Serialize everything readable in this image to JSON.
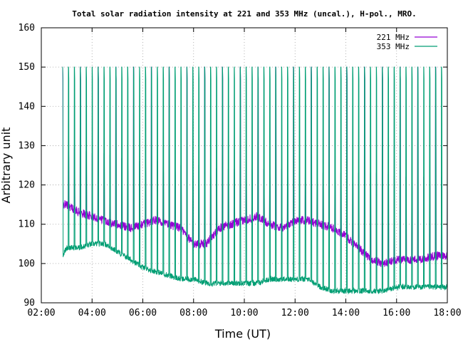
{
  "chart_data": {
    "type": "line",
    "title": "Total solar radiation intensity at 221 and 353 MHz (uncal.), H-pol., MRO.",
    "xlabel": "Time (UT)",
    "ylabel": "Arbitrary unit",
    "xlim": [
      "02:00",
      "18:00"
    ],
    "ylim": [
      90,
      160
    ],
    "x_ticks": [
      "02:00",
      "04:00",
      "06:00",
      "08:00",
      "10:00",
      "12:00",
      "14:00",
      "16:00",
      "18:00"
    ],
    "y_ticks": [
      90,
      100,
      110,
      120,
      130,
      140,
      150,
      160
    ],
    "grid": true,
    "legend_position": "top-right",
    "series": [
      {
        "name": "221 MHz",
        "color": "#9400d3",
        "x": [
          "02:50",
          "03:00",
          "03:30",
          "04:00",
          "04:30",
          "05:00",
          "05:30",
          "06:00",
          "06:30",
          "07:00",
          "07:30",
          "08:00",
          "08:30",
          "09:00",
          "09:30",
          "10:00",
          "10:30",
          "11:00",
          "11:30",
          "12:00",
          "12:30",
          "13:00",
          "13:30",
          "14:00",
          "14:30",
          "15:00",
          "15:30",
          "16:00",
          "16:30",
          "17:00",
          "17:30",
          "18:00"
        ],
        "values": [
          115,
          115,
          113,
          112,
          111,
          110,
          109,
          110,
          111,
          110,
          109,
          105,
          105,
          109,
          110,
          111,
          112,
          110,
          109,
          111,
          111,
          110,
          109,
          107,
          104,
          101,
          100,
          101,
          101,
          101,
          102,
          102
        ],
        "spike_peaks": [
          131,
          130,
          129,
          128,
          128,
          127,
          126,
          126,
          126,
          126,
          125,
          125,
          125,
          124,
          124,
          124,
          124,
          124,
          124,
          123,
          123,
          123,
          123,
          123,
          123,
          123,
          123,
          122,
          122,
          122,
          122,
          122
        ],
        "calibration_spike_level": 150
      },
      {
        "name": "353 MHz",
        "color": "#009e73",
        "x": [
          "02:50",
          "03:00",
          "03:30",
          "04:00",
          "04:30",
          "05:00",
          "05:30",
          "06:00",
          "06:30",
          "07:00",
          "07:30",
          "08:00",
          "08:30",
          "09:00",
          "09:30",
          "10:00",
          "10:30",
          "11:00",
          "11:30",
          "12:00",
          "12:30",
          "13:00",
          "13:30",
          "14:00",
          "14:30",
          "15:00",
          "15:30",
          "16:00",
          "16:30",
          "17:00",
          "17:30",
          "18:00"
        ],
        "values": [
          102,
          104,
          104,
          105,
          105,
          103,
          101,
          99,
          98,
          97,
          96,
          96,
          95,
          95,
          95,
          95,
          95,
          96,
          96,
          96,
          96,
          94,
          93,
          93,
          93,
          93,
          93,
          94,
          94,
          94,
          94,
          94
        ],
        "spike_peaks": [
          150,
          150,
          150,
          150,
          150,
          150,
          150,
          150,
          150,
          150,
          150,
          150,
          150,
          150,
          150,
          150,
          150,
          150,
          150,
          150,
          150,
          150,
          150,
          150,
          150,
          150,
          150,
          150,
          150,
          150,
          150,
          150
        ],
        "spike_interval_minutes": 14
      }
    ]
  }
}
